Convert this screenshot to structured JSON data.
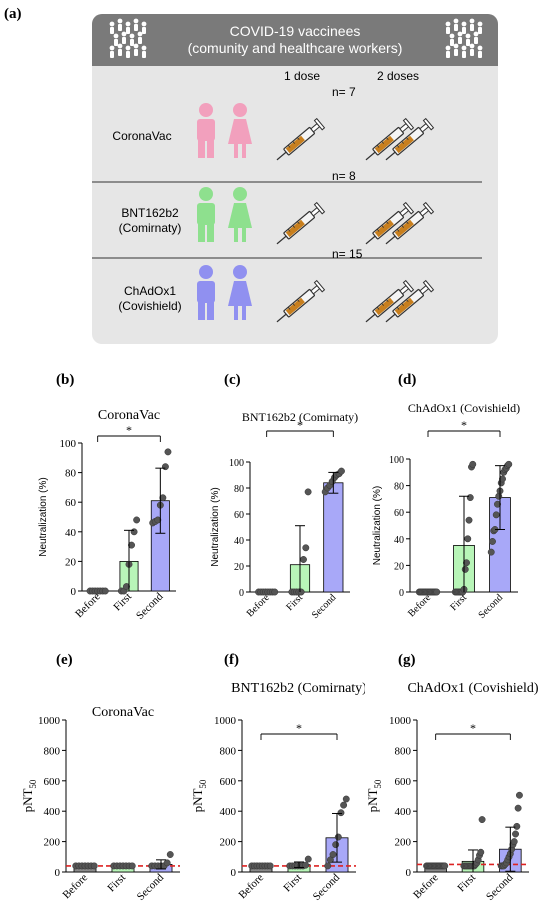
{
  "panel_a": {
    "letter": "(a)",
    "banner_line1": "COVID-19 vaccinees",
    "banner_line2": "(comunity and healthcare workers)",
    "col_1dose": "1 dose",
    "col_2doses": "2 doses",
    "rows": [
      {
        "name": "CoronaVac",
        "name2": "",
        "n": "n= 7",
        "color": "#f2a0bd"
      },
      {
        "name": "BNT162b2",
        "name2": "(Comirnaty)",
        "n": "n= 8",
        "color": "#8ee08e"
      },
      {
        "name": "ChAdOx1",
        "name2": "(Covishield)",
        "n": "n= 15",
        "color": "#9090f0"
      }
    ]
  },
  "chart_data": [
    {
      "panel": "(b)",
      "type": "bar",
      "title": "CoronaVac",
      "ylabel": "Neutralization (%)",
      "categories": [
        "Before",
        "First",
        "Second"
      ],
      "values": [
        0,
        20,
        61
      ],
      "errors": [
        0,
        21,
        22
      ],
      "ylim": [
        0,
        100
      ],
      "yticks": [
        "0",
        "20",
        "40",
        "60",
        "80",
        "100"
      ],
      "colors": [
        "#8a8a8a",
        "#b8f5b8",
        "#a8a8f8"
      ],
      "significance": {
        "from": 0,
        "to": 2,
        "label": "*"
      },
      "points": [
        [
          0,
          0,
          0,
          0,
          0,
          0,
          0
        ],
        [
          0,
          0,
          3,
          18,
          31,
          40,
          48
        ],
        [
          46,
          47,
          48,
          58,
          63,
          84,
          94
        ]
      ]
    },
    {
      "panel": "(c)",
      "type": "bar",
      "title": "BNT162b2 (Comirnaty)",
      "ylabel": "Neutralization (%)",
      "categories": [
        "Before",
        "First",
        "Second"
      ],
      "values": [
        0,
        21,
        84
      ],
      "errors": [
        0,
        30,
        8
      ],
      "ylim": [
        0,
        100
      ],
      "yticks": [
        "0",
        "20",
        "40",
        "60",
        "80",
        "100"
      ],
      "colors": [
        "#8a8a8a",
        "#b8f5b8",
        "#a8a8f8"
      ],
      "significance": {
        "from": 0,
        "to": 2,
        "label": "*"
      },
      "points": [
        [
          0,
          0,
          0,
          0,
          0,
          0,
          0,
          0
        ],
        [
          0,
          0,
          0,
          0,
          0,
          25,
          34,
          77
        ],
        [
          77,
          80,
          82,
          85,
          88,
          90,
          91,
          93
        ]
      ]
    },
    {
      "panel": "(d)",
      "type": "bar",
      "title": "ChAdOx1 (Covishield)",
      "ylabel": "Neutralization (%)",
      "categories": [
        "Before",
        "First",
        "Second"
      ],
      "values": [
        0,
        35,
        71
      ],
      "errors": [
        0,
        37,
        24
      ],
      "ylim": [
        0,
        100
      ],
      "yticks": [
        "0",
        "20",
        "40",
        "60",
        "80",
        "100"
      ],
      "colors": [
        "#8a8a8a",
        "#b8f5b8",
        "#a8a8f8"
      ],
      "significance": {
        "from": 0,
        "to": 2,
        "label": "*"
      },
      "points": [
        [
          0,
          0,
          0,
          0,
          0,
          0,
          0,
          0,
          0,
          0,
          0,
          0,
          0,
          0,
          0
        ],
        [
          0,
          0,
          0,
          0,
          0,
          0,
          0,
          2,
          17,
          22,
          40,
          54,
          71,
          94,
          96
        ],
        [
          30,
          38,
          46,
          47,
          58,
          66,
          72,
          76,
          82,
          85,
          90,
          92,
          93,
          95,
          96
        ]
      ]
    },
    {
      "panel": "(e)",
      "type": "bar",
      "title": "CoronaVac",
      "ylabel": "pNT50",
      "categories": [
        "Before",
        "First",
        "Second"
      ],
      "values": [
        40,
        40,
        50
      ],
      "errors": [
        0,
        0,
        30
      ],
      "ylim": [
        0,
        1000
      ],
      "yticks": [
        "0",
        "200",
        "400",
        "600",
        "800",
        "1000"
      ],
      "colors": [
        "#8a8a8a",
        "#b8f5b8",
        "#a8a8f8"
      ],
      "threshold": 40,
      "significance": null,
      "points": [
        [
          40,
          40,
          40,
          40,
          40,
          40,
          40
        ],
        [
          40,
          40,
          40,
          40,
          40,
          40,
          40
        ],
        [
          40,
          40,
          40,
          40,
          40,
          60,
          115
        ]
      ]
    },
    {
      "panel": "(f)",
      "type": "bar",
      "title": "BNT162b2 (Comirnaty)",
      "ylabel": "pNT50",
      "categories": [
        "Before",
        "First",
        "Second"
      ],
      "values": [
        40,
        48,
        225
      ],
      "errors": [
        0,
        18,
        160
      ],
      "ylim": [
        0,
        1000
      ],
      "yticks": [
        "0",
        "200",
        "400",
        "600",
        "800",
        "1000"
      ],
      "colors": [
        "#8a8a8a",
        "#b8f5b8",
        "#a8a8f8"
      ],
      "threshold": 40,
      "significance": {
        "from": 0,
        "to": 2,
        "label": "*"
      },
      "points": [
        [
          40,
          40,
          40,
          40,
          40,
          40,
          40,
          40
        ],
        [
          40,
          40,
          40,
          40,
          40,
          40,
          45,
          85
        ],
        [
          40,
          80,
          115,
          180,
          230,
          390,
          440,
          480
        ]
      ]
    },
    {
      "panel": "(g)",
      "type": "bar",
      "title": "ChAdOx1 (Covishield)",
      "ylabel": "pNT50",
      "categories": [
        "Before",
        "First",
        "Second"
      ],
      "values": [
        40,
        70,
        150
      ],
      "errors": [
        0,
        75,
        145
      ],
      "ylim": [
        0,
        1000
      ],
      "yticks": [
        "0",
        "200",
        "400",
        "600",
        "800",
        "1000"
      ],
      "colors": [
        "#8a8a8a",
        "#b8f5b8",
        "#a8a8f8"
      ],
      "threshold": 50,
      "significance": {
        "from": 0,
        "to": 2,
        "label": "*"
      },
      "points": [
        [
          40,
          40,
          40,
          40,
          40,
          40,
          40,
          40,
          40,
          40,
          40,
          40,
          40,
          40,
          40
        ],
        [
          40,
          40,
          40,
          40,
          40,
          40,
          40,
          40,
          40,
          50,
          60,
          80,
          110,
          130,
          345
        ],
        [
          40,
          40,
          40,
          50,
          60,
          80,
          100,
          120,
          150,
          180,
          200,
          250,
          300,
          420,
          505
        ]
      ]
    }
  ]
}
